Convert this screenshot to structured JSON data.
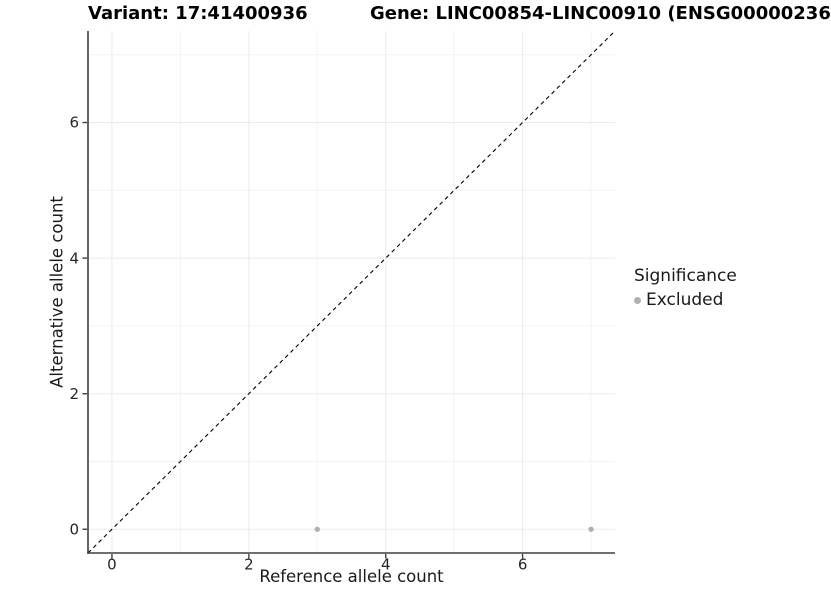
{
  "chart_data": {
    "type": "scatter",
    "title_left": "Variant: 17:41400936",
    "title_right": "Gene: LINC00854-LINC00910 (ENSG00000236",
    "xlabel": "Reference allele count",
    "ylabel": "Alternative allele count",
    "xlim": [
      -0.35,
      7.35
    ],
    "ylim": [
      -0.35,
      7.35
    ],
    "x_ticks": [
      0,
      2,
      4,
      6
    ],
    "y_ticks": [
      0,
      2,
      4,
      6
    ],
    "x_minor_gridlines": [
      1,
      3,
      5,
      7
    ],
    "y_minor_gridlines": [
      1,
      3,
      5,
      7
    ],
    "grid": true,
    "legend_position": "right",
    "points": [
      {
        "x": 3,
        "y": 0,
        "series": "Excluded"
      },
      {
        "x": 7,
        "y": 0,
        "series": "Excluded"
      }
    ],
    "reference_line": {
      "type": "identity",
      "slope": 1,
      "intercept": 0,
      "style": "dashed"
    },
    "legend": {
      "title": "Significance",
      "items": [
        {
          "label": "Excluded",
          "color": "#b0b0b0"
        }
      ]
    },
    "colors": {
      "point": "#b0b0b0",
      "grid_major": "#ebebeb",
      "grid_minor": "#f3f3f3",
      "axis_line": "#3f3f3f",
      "tick_label": "#262626",
      "reference_line": "#000000"
    }
  }
}
